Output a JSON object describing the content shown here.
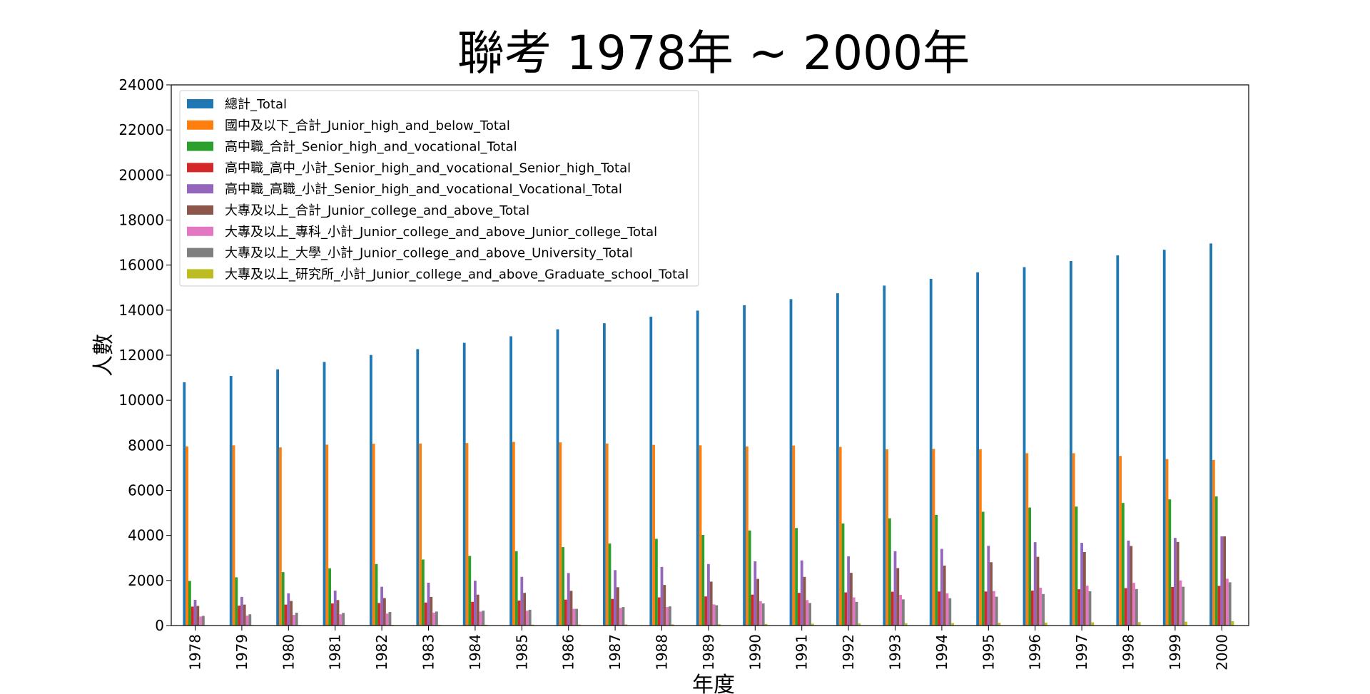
{
  "chart_data": {
    "type": "bar",
    "title": "聯考 1978年 ~ 2000年",
    "xlabel": "年度",
    "ylabel": "人數",
    "ylim": [
      0,
      24000
    ],
    "yticks": [
      0,
      2000,
      4000,
      6000,
      8000,
      10000,
      12000,
      14000,
      16000,
      18000,
      20000,
      22000,
      24000
    ],
    "legend_position": "top-left",
    "categories": [
      "1978",
      "1979",
      "1980",
      "1981",
      "1982",
      "1983",
      "1984",
      "1985",
      "1986",
      "1987",
      "1988",
      "1989",
      "1990",
      "1991",
      "1992",
      "1993",
      "1994",
      "1995",
      "1996",
      "1997",
      "1998",
      "1999",
      "2000"
    ],
    "series": [
      {
        "name": "總計_Total",
        "color": "#1f77b4",
        "values": [
          10800,
          11080,
          11370,
          11700,
          12010,
          12270,
          12550,
          12840,
          13150,
          13420,
          13710,
          13980,
          14220,
          14490,
          14750,
          15090,
          15390,
          15680,
          15910,
          16180,
          16430,
          16680,
          16960
        ]
      },
      {
        "name": "國中及以下_合計_Junior_high_and_below_Total",
        "color": "#ff7f0e",
        "values": [
          7950,
          8000,
          7910,
          8030,
          8070,
          8080,
          8100,
          8150,
          8130,
          8080,
          8020,
          8000,
          7950,
          7990,
          7930,
          7820,
          7840,
          7820,
          7650,
          7650,
          7530,
          7390,
          7350
        ]
      },
      {
        "name": "高中職_合計_Senior_high_and_vocational_Total",
        "color": "#2ca02c",
        "values": [
          1980,
          2140,
          2370,
          2540,
          2730,
          2930,
          3090,
          3300,
          3480,
          3640,
          3850,
          4020,
          4220,
          4330,
          4530,
          4760,
          4910,
          5050,
          5240,
          5280,
          5440,
          5600,
          5730
        ]
      },
      {
        "name": "高中職_高中_小計_Senior_high_and_vocational_Senior_high_Total",
        "color": "#d62728",
        "values": [
          840,
          880,
          930,
          980,
          1000,
          1020,
          1050,
          1110,
          1150,
          1180,
          1250,
          1290,
          1370,
          1450,
          1470,
          1500,
          1510,
          1510,
          1550,
          1610,
          1660,
          1710,
          1760
        ]
      },
      {
        "name": "高中職_高職_小計_Senior_high_and_vocational_Vocational_Total",
        "color": "#9467bd",
        "values": [
          1140,
          1270,
          1430,
          1550,
          1720,
          1900,
          1990,
          2160,
          2330,
          2460,
          2600,
          2730,
          2850,
          2890,
          3070,
          3300,
          3400,
          3540,
          3700,
          3670,
          3770,
          3890,
          3960
        ]
      },
      {
        "name": "大專及以上_合計_Junior_college_and_above_Total",
        "color": "#8c564b",
        "values": [
          870,
          930,
          1090,
          1130,
          1220,
          1270,
          1370,
          1450,
          1540,
          1700,
          1800,
          1950,
          2070,
          2160,
          2340,
          2550,
          2660,
          2810,
          3050,
          3260,
          3530,
          3710,
          3960
        ]
      },
      {
        "name": "大專及以上_專科_小計_Junior_college_and_above_Junior_college_Total",
        "color": "#e377c2",
        "values": [
          400,
          440,
          470,
          500,
          530,
          570,
          620,
          660,
          740,
          780,
          820,
          940,
          1080,
          1130,
          1250,
          1360,
          1430,
          1530,
          1680,
          1770,
          1890,
          2000,
          2080
        ]
      },
      {
        "name": "大專及以上_大學_小計_Junior_college_and_above_University_Total",
        "color": "#7f7f7f",
        "values": [
          430,
          500,
          570,
          560,
          600,
          620,
          660,
          700,
          740,
          820,
          850,
          900,
          980,
          1000,
          1050,
          1160,
          1210,
          1280,
          1400,
          1520,
          1620,
          1720,
          1920
        ]
      },
      {
        "name": "大專及以上_研究所_小計_Junior_college_and_above_Graduate_school_Total",
        "color": "#bcbd22",
        "values": [
          20,
          20,
          25,
          25,
          30,
          30,
          35,
          40,
          45,
          50,
          55,
          60,
          70,
          80,
          90,
          100,
          110,
          120,
          130,
          140,
          150,
          170,
          190
        ]
      }
    ]
  }
}
